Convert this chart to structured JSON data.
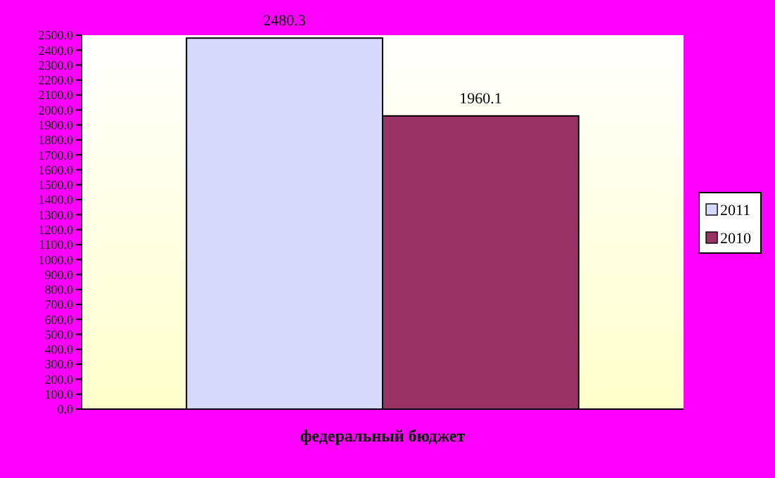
{
  "chart_data": {
    "type": "bar",
    "categories": [
      "федеральный бюджет"
    ],
    "series": [
      {
        "name": "2011",
        "color": "#d6d8fc",
        "values": [
          2480.3
        ]
      },
      {
        "name": "2010",
        "color": "#993366",
        "values": [
          1960.1
        ]
      }
    ],
    "ylim": [
      0,
      2500
    ],
    "yticks": [
      {
        "value": 0,
        "label": "0.0"
      },
      {
        "value": 100,
        "label": "100.0"
      },
      {
        "value": 200,
        "label": "200.0"
      },
      {
        "value": 300,
        "label": "300.0"
      },
      {
        "value": 400,
        "label": "400.0"
      },
      {
        "value": 500,
        "label": "500.0"
      },
      {
        "value": 600,
        "label": "600.0"
      },
      {
        "value": 700,
        "label": "700.0"
      },
      {
        "value": 800,
        "label": "800.0"
      },
      {
        "value": 900,
        "label": "900.0"
      },
      {
        "value": 1000,
        "label": "1000.0"
      },
      {
        "value": 1100,
        "label": "1100.0"
      },
      {
        "value": 1200,
        "label": "1200.0"
      },
      {
        "value": 1300,
        "label": "1300.0"
      },
      {
        "value": 1400,
        "label": "1400.0"
      },
      {
        "value": 1500,
        "label": "1500.0"
      },
      {
        "value": 1600,
        "label": "1600.0"
      },
      {
        "value": 1700,
        "label": "1700.0"
      },
      {
        "value": 1800,
        "label": "1800.0"
      },
      {
        "value": 1900,
        "label": "1900.0"
      },
      {
        "value": 2000,
        "label": "2000.0"
      },
      {
        "value": 2100,
        "label": "2100.0"
      },
      {
        "value": 2200,
        "label": "2200.0"
      },
      {
        "value": 2300,
        "label": "2300.0"
      },
      {
        "value": 2400,
        "label": "2400.0"
      },
      {
        "value": 2500,
        "label": "2500.0"
      }
    ],
    "data_labels": true,
    "legend": "right",
    "grid": false
  }
}
